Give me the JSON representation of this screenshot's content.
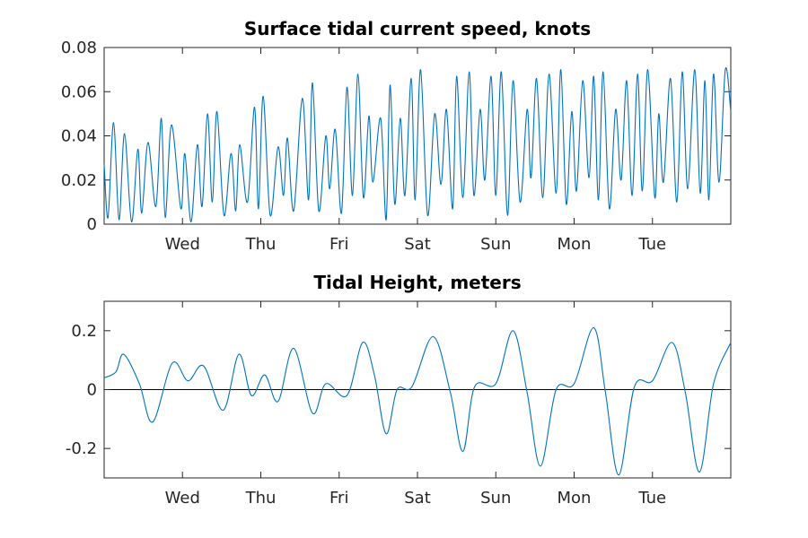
{
  "colors": {
    "series": "#0072BD",
    "axis": "#262626",
    "reference_line": "#000000"
  },
  "chart_data": [
    {
      "type": "line",
      "title": "Surface tidal current speed, knots",
      "xlabel": "",
      "ylabel": "",
      "ylim": [
        0,
        0.08
      ],
      "yticks": [
        0,
        0.02,
        0.04,
        0.06,
        0.08
      ],
      "ytick_labels": [
        "0",
        "0.02",
        "0.04",
        "0.06",
        "0.08"
      ],
      "xlim_days": [
        0,
        8
      ],
      "xticks_days": [
        1,
        2,
        3,
        4,
        5,
        6,
        7
      ],
      "xtick_labels": [
        "Wed",
        "Thu",
        "Fri",
        "Sat",
        "Sun",
        "Mon",
        "Tue"
      ],
      "grid": false,
      "legend": false,
      "series": [
        {
          "x_days": [
            0.0,
            0.05,
            0.12,
            0.19,
            0.26,
            0.35,
            0.43,
            0.48,
            0.56,
            0.66,
            0.73,
            0.78,
            0.86,
            0.98,
            1.03,
            1.11,
            1.19,
            1.25,
            1.32,
            1.38,
            1.44,
            1.53,
            1.62,
            1.68,
            1.73,
            1.83,
            1.92,
            1.97,
            2.03,
            2.12,
            2.22,
            2.29,
            2.34,
            2.42,
            2.53,
            2.61,
            2.66,
            2.74,
            2.83,
            2.88,
            2.95,
            3.03,
            3.1,
            3.17,
            3.24,
            3.31,
            3.38,
            3.43,
            3.53,
            3.6,
            3.65,
            3.71,
            3.78,
            3.84,
            3.92,
            3.97,
            4.04,
            4.13,
            4.22,
            4.3,
            4.37,
            4.45,
            4.5,
            4.58,
            4.66,
            4.72,
            4.8,
            4.86,
            4.94,
            5.0,
            5.07,
            5.15,
            5.22,
            5.31,
            5.4,
            5.45,
            5.52,
            5.6,
            5.68,
            5.77,
            5.83,
            5.9,
            5.97,
            6.03,
            6.11,
            6.19,
            6.25,
            6.31,
            6.37,
            6.45,
            6.53,
            6.6,
            6.67,
            6.74,
            6.81,
            6.87,
            6.94,
            7.03,
            7.08,
            7.14,
            7.23,
            7.31,
            7.38,
            7.45,
            7.54,
            7.61,
            7.67,
            7.72,
            7.78,
            7.85,
            7.93,
            8.0
          ],
          "y": [
            0.027,
            0.003,
            0.046,
            0.002,
            0.041,
            0.001,
            0.034,
            0.005,
            0.037,
            0.008,
            0.048,
            0.003,
            0.045,
            0.007,
            0.032,
            0.001,
            0.036,
            0.008,
            0.05,
            0.01,
            0.051,
            0.004,
            0.032,
            0.006,
            0.036,
            0.01,
            0.053,
            0.007,
            0.058,
            0.004,
            0.035,
            0.013,
            0.039,
            0.006,
            0.057,
            0.011,
            0.064,
            0.006,
            0.04,
            0.016,
            0.043,
            0.005,
            0.062,
            0.013,
            0.068,
            0.012,
            0.049,
            0.019,
            0.048,
            0.002,
            0.063,
            0.009,
            0.048,
            0.013,
            0.066,
            0.011,
            0.07,
            0.004,
            0.05,
            0.018,
            0.052,
            0.007,
            0.067,
            0.012,
            0.069,
            0.013,
            0.052,
            0.02,
            0.067,
            0.013,
            0.069,
            0.004,
            0.065,
            0.01,
            0.052,
            0.021,
            0.066,
            0.012,
            0.068,
            0.014,
            0.07,
            0.009,
            0.051,
            0.015,
            0.065,
            0.021,
            0.067,
            0.011,
            0.069,
            0.007,
            0.052,
            0.02,
            0.065,
            0.013,
            0.068,
            0.015,
            0.07,
            0.012,
            0.05,
            0.019,
            0.066,
            0.01,
            0.069,
            0.016,
            0.07,
            0.014,
            0.065,
            0.011,
            0.068,
            0.019,
            0.07,
            0.051
          ]
        }
      ]
    },
    {
      "type": "line",
      "title": "Tidal Height, meters",
      "xlabel": "",
      "ylabel": "",
      "ylim": [
        -0.3,
        0.3
      ],
      "yticks": [
        -0.2,
        0,
        0.2
      ],
      "ytick_labels": [
        "-0.2",
        "0",
        "0.2"
      ],
      "xlim_days": [
        0,
        8
      ],
      "xticks_days": [
        1,
        2,
        3,
        4,
        5,
        6,
        7
      ],
      "xtick_labels": [
        "Wed",
        "Thu",
        "Fri",
        "Sat",
        "Sun",
        "Mon",
        "Tue"
      ],
      "reference_line_y": 0,
      "grid": false,
      "legend": false,
      "series": [
        {
          "x_days": [
            0.0,
            0.15,
            0.25,
            0.45,
            0.62,
            0.87,
            1.07,
            1.27,
            1.52,
            1.72,
            1.88,
            2.05,
            2.22,
            2.42,
            2.66,
            2.83,
            3.1,
            3.3,
            3.45,
            3.6,
            3.74,
            3.93,
            4.2,
            4.42,
            4.58,
            4.73,
            5.0,
            5.22,
            5.4,
            5.57,
            5.77,
            6.0,
            6.25,
            6.4,
            6.57,
            6.77,
            7.0,
            7.25,
            7.42,
            7.6,
            7.78,
            8.0
          ],
          "y": [
            0.04,
            0.06,
            0.12,
            0.02,
            -0.11,
            0.09,
            0.03,
            0.08,
            -0.07,
            0.12,
            -0.02,
            0.05,
            -0.04,
            0.14,
            -0.08,
            0.02,
            -0.02,
            0.16,
            0.05,
            -0.15,
            0.0,
            0.01,
            0.18,
            -0.01,
            -0.21,
            0.01,
            0.02,
            0.2,
            -0.01,
            -0.26,
            0.0,
            0.02,
            0.21,
            -0.01,
            -0.29,
            0.01,
            0.03,
            0.16,
            -0.01,
            -0.28,
            0.02,
            0.16
          ]
        }
      ]
    }
  ]
}
